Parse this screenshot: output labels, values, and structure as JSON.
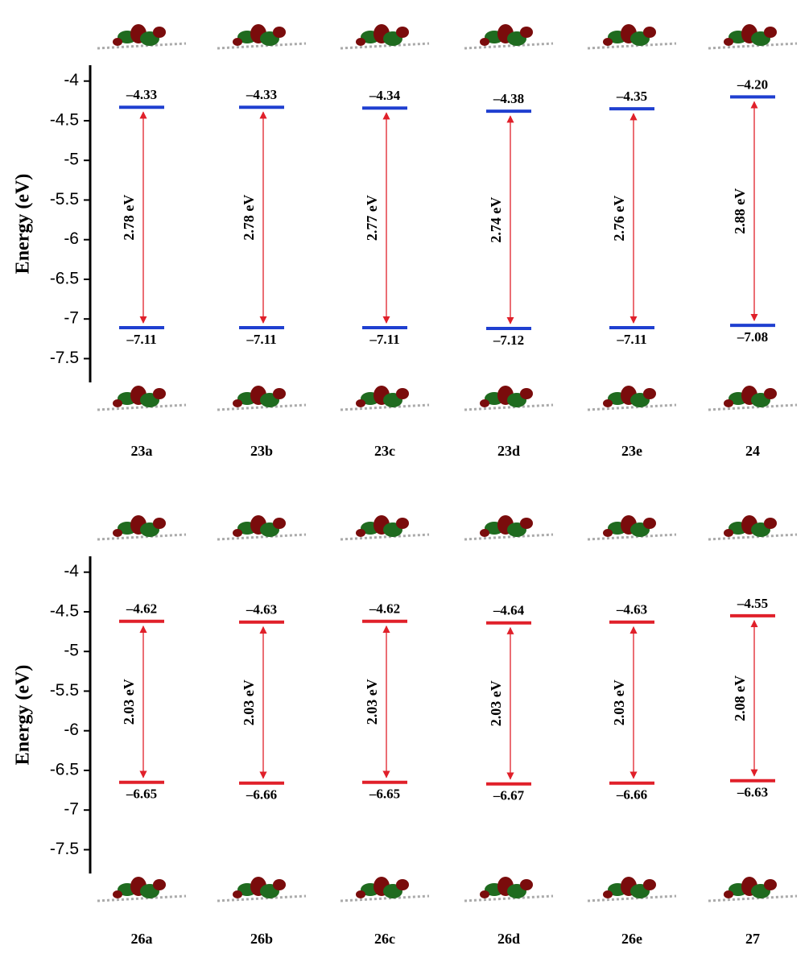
{
  "chart_data": [
    {
      "type": "energy-level",
      "y_label": "Energy (eV)",
      "ylim": [
        -7.8,
        -3.8
      ],
      "yticks": [
        -4,
        -4.5,
        -5,
        -5.5,
        -6,
        -6.5,
        -7,
        -7.5
      ],
      "color": "#1f3fd0",
      "arrow_color": "#e0202a",
      "categories": [
        "23a",
        "23b",
        "23c",
        "23d",
        "23e",
        "24"
      ],
      "lumo": {
        "values": [
          -4.33,
          -4.33,
          -4.34,
          -4.38,
          -4.35,
          -4.2
        ],
        "value_labels": [
          "–4.33",
          "–4.33",
          "–4.34",
          "–4.38",
          "–4.35",
          "–4.20"
        ]
      },
      "homo": {
        "values": [
          -7.11,
          -7.11,
          -7.11,
          -7.12,
          -7.11,
          -7.08
        ],
        "value_labels": [
          "–7.11",
          "–7.11",
          "–7.11",
          "–7.12",
          "–7.11",
          "–7.08"
        ]
      },
      "gap": {
        "values": [
          2.78,
          2.78,
          2.77,
          2.74,
          2.76,
          2.88
        ],
        "value_labels": [
          "2.78 eV",
          "2.78 eV",
          "2.77 eV",
          "2.74 eV",
          "2.76 eV",
          "2.88 eV"
        ]
      }
    },
    {
      "type": "energy-level",
      "y_label": "Energy (eV)",
      "ylim": [
        -7.8,
        -3.8
      ],
      "yticks": [
        -4,
        -4.5,
        -5,
        -5.5,
        -6,
        -6.5,
        -7,
        -7.5
      ],
      "color": "#e0202a",
      "arrow_color": "#e0202a",
      "categories": [
        "26a",
        "26b",
        "26c",
        "26d",
        "26e",
        "27"
      ],
      "lumo": {
        "values": [
          -4.62,
          -4.63,
          -4.62,
          -4.64,
          -4.63,
          -4.55
        ],
        "value_labels": [
          "–4.62",
          "–4.63",
          "–4.62",
          "–4.64",
          "–4.63",
          "–4.55"
        ]
      },
      "homo": {
        "values": [
          -6.65,
          -6.66,
          -6.65,
          -6.67,
          -6.66,
          -6.63
        ],
        "value_labels": [
          "–6.65",
          "–6.66",
          "–6.65",
          "–6.67",
          "–6.66",
          "–6.63"
        ]
      },
      "gap": {
        "values": [
          2.03,
          2.03,
          2.03,
          2.03,
          2.03,
          2.08
        ],
        "value_labels": [
          "2.03 eV",
          "2.03 eV",
          "2.03 eV",
          "2.03 eV",
          "2.03 eV",
          "2.08 eV"
        ]
      }
    }
  ]
}
